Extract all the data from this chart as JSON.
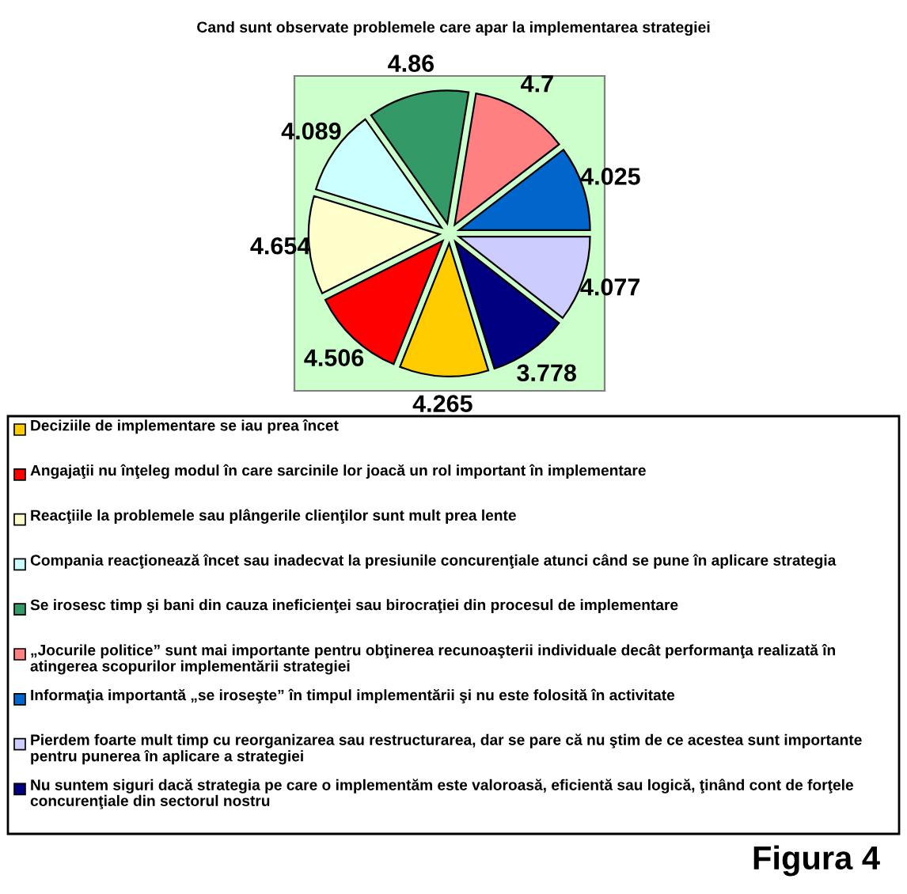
{
  "chart_data": {
    "type": "pie",
    "title": "Cand sunt observate problemele care apar la implementarea strategiei",
    "categories": [
      "Deciziile de implementare se iau prea încet",
      "Angajaţii nu înţeleg modul în care sarcinile lor joacă un rol important în implementare",
      "Reacţiile la problemele sau plângerile clienţilor sunt mult prea lente",
      "Compania reacţionează încet sau inadecvat la presiunile concurenţiale atunci când se pune în aplicare strategia",
      "Se irosesc timp şi bani din cauza ineficienţei sau birocraţiei din procesul de implementare",
      "„Jocurile politice” sunt mai importante pentru obţinerea recunoaşterii individuale decât performanţa realizată în atingerea scopurilor implementării strategiei",
      "Informaţia importantă „se iroseşte” în timpul implementării şi nu este folosită în activitate",
      "Pierdem foarte mult timp cu reorganizarea sau restructurarea, dar se pare că nu ştim de ce acestea sunt importante pentru punerea în aplicare a strategiei",
      "Nu suntem siguri dacă strategia pe care o implementăm este valoroasă, eficientă sau logică, ţinând cont de forţele concurenţiale din sectorul nostru"
    ],
    "values": [
      4.265,
      4.506,
      4.654,
      4.089,
      4.86,
      4.7,
      4.025,
      4.077,
      3.778
    ],
    "colors": [
      "#ffcc00",
      "#ff0000",
      "#ffffcc",
      "#ccffff",
      "#339966",
      "#ff8080",
      "#0066cc",
      "#ccccff",
      "#000080"
    ],
    "data_labels": true,
    "legend": "bottom",
    "annotations": [
      "Figura 4"
    ]
  }
}
